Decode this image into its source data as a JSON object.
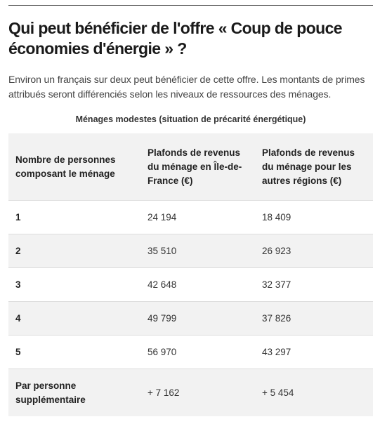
{
  "header": {
    "title": "Qui peut bénéficier de l'offre « Coup de pouce économies d'énergie » ?"
  },
  "intro": "Environ un français sur deux peut bénéficier de cette offre. Les montants de primes attribués seront différenciés selon les niveaux de ressources des ménages.",
  "table": {
    "caption": "Ménages modestes (situation de précarité énergétique)",
    "columns": [
      "Nombre de personnes composant le ménage",
      "Plafonds de revenus du ménage en Île-de-France (€)",
      "Plafonds de revenus du ménage pour les autres régions (€)"
    ],
    "rows": [
      [
        "1",
        "24 194",
        "18 409"
      ],
      [
        "2",
        "35 510",
        "26 923"
      ],
      [
        "3",
        "42 648",
        "32 377"
      ],
      [
        "4",
        "49 799",
        "37 826"
      ],
      [
        "5",
        "56 970",
        "43 297"
      ],
      [
        "Par personne supplémentaire",
        "+ 7 162",
        "+ 5 454"
      ]
    ]
  }
}
